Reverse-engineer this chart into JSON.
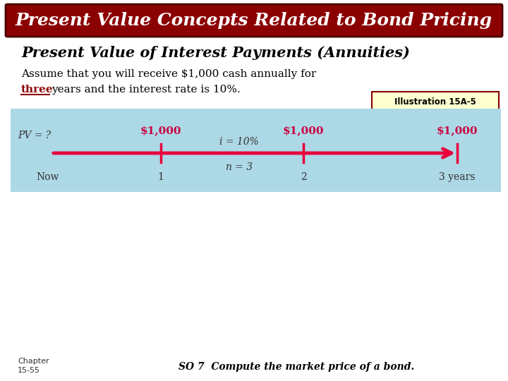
{
  "title": "Present Value Concepts Related to Bond Pricing",
  "title_bg": "#8B0000",
  "title_text_color": "#FFFFFF",
  "subtitle": "Present Value of Interest Payments (Annuities)",
  "body_text1": "Assume that you will receive $1,000 cash annually for",
  "body_text2_normal": "years and the interest rate is 10%.",
  "body_text2_underline": "three",
  "illustration_label": "Illustration 15A-5",
  "illustration_border": "#8B0000",
  "illustration_bg": "#FFFFD0",
  "timeline_bg": "#ADD8E6",
  "timeline_line_color": "#E8003D",
  "pv_label": "PV = ?",
  "amount_color": "#CC0044",
  "amounts": [
    "$1,000",
    "$1,000",
    "$1,000"
  ],
  "time_labels": [
    "Now",
    "1",
    "2",
    "3 years"
  ],
  "interest_label": "i = 10%",
  "n_label": "n = 3",
  "chapter_line1": "Chapter",
  "chapter_line2": "15-55",
  "footer_text": "SO 7  Compute the market price of a bond.",
  "bg_color": "#FFFFFF",
  "subtitle_color": "#000000",
  "body_color": "#000000",
  "underline_color": "#8B0000"
}
